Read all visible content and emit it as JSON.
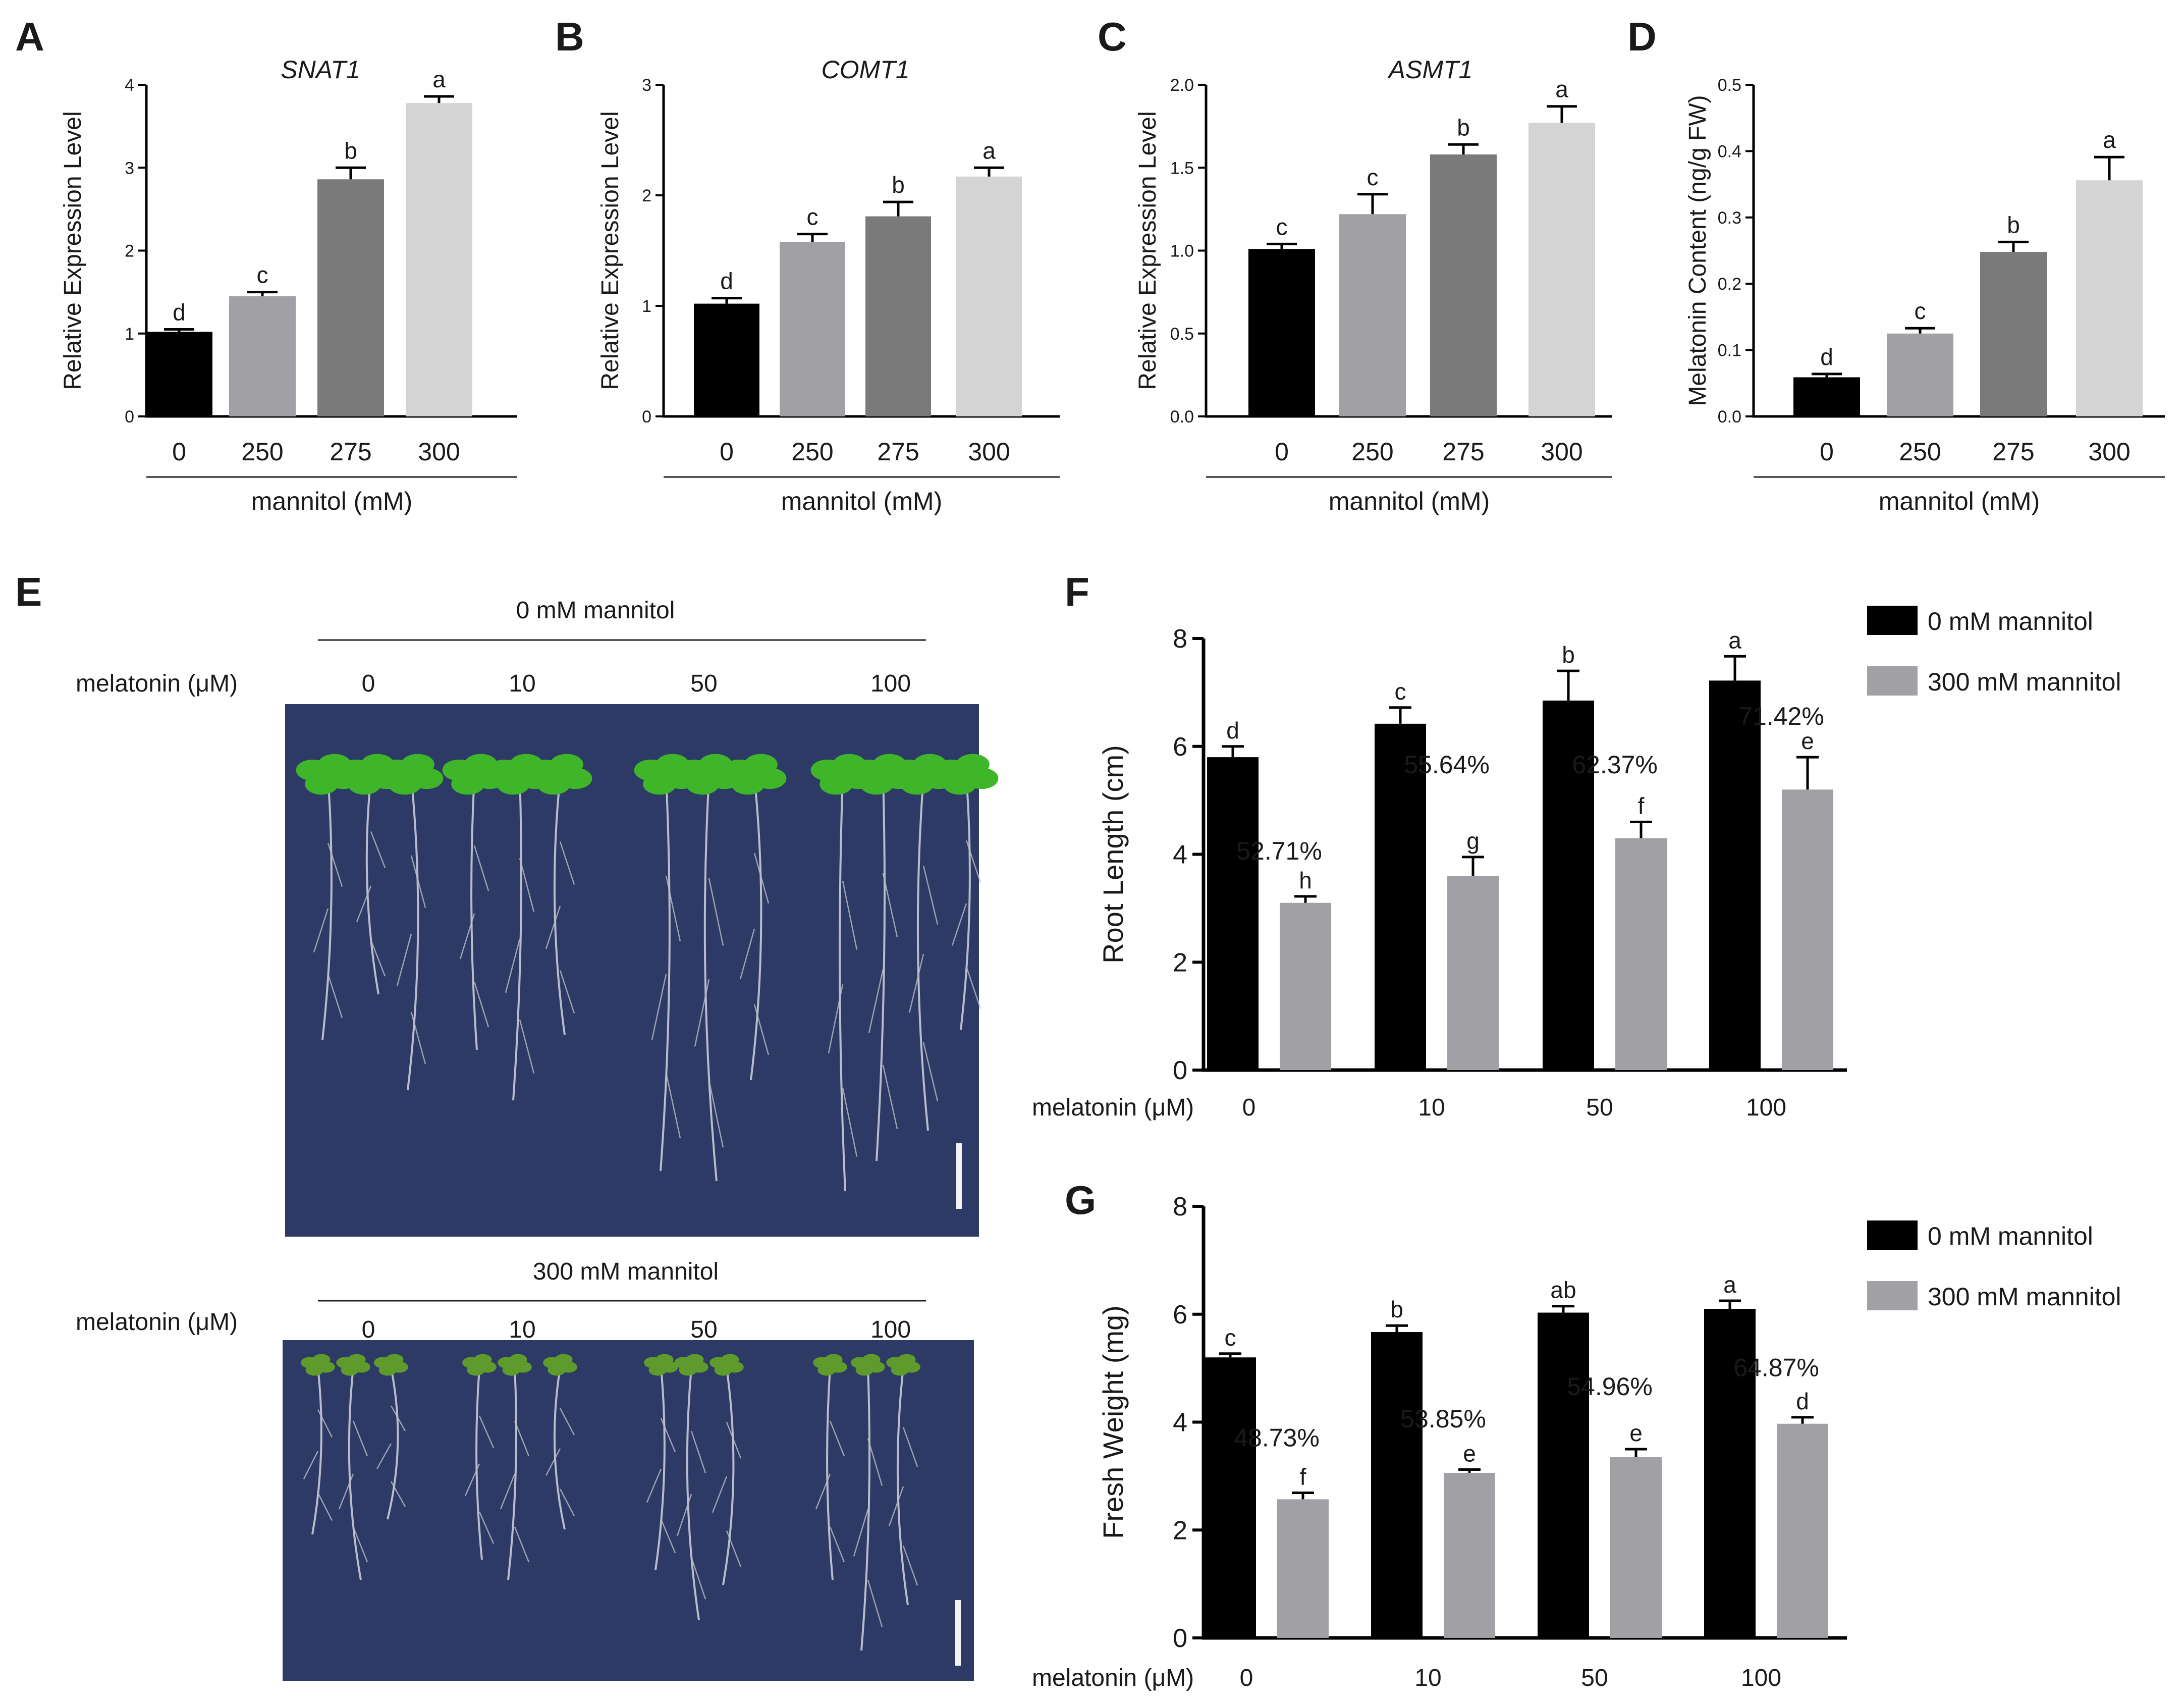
{
  "colors": {
    "c0": "#000000",
    "c250": "#a1a1a5",
    "c275": "#7a7a7a",
    "c300": "#d4d4d4",
    "mannitol0": "#000000",
    "mannitol300": "#a1a1a5",
    "plate": "#2e3a66"
  },
  "panels": {
    "A": "A",
    "B": "B",
    "C": "C",
    "D": "D",
    "E": "E",
    "F": "F",
    "G": "G"
  },
  "photo": {
    "top_condition": "0 mM mannitol",
    "bottom_condition": "300 mM mannitol",
    "row_label": "melatonin (μM)",
    "columns": [
      "0",
      "10",
      "50",
      "100"
    ]
  },
  "chart_data": [
    {
      "id": "A",
      "type": "bar",
      "title": "SNAT1",
      "ylabel": "Relative Expression Level",
      "xlabel": "mannitol (mM)",
      "categories": [
        "0",
        "250",
        "275",
        "300"
      ],
      "values": [
        1.02,
        1.45,
        2.86,
        3.78
      ],
      "errors": [
        0.03,
        0.05,
        0.14,
        0.08
      ],
      "letters": [
        "d",
        "c",
        "b",
        "a"
      ],
      "ylim": [
        0,
        4
      ],
      "yticks": [
        "0",
        "1",
        "2",
        "3",
        "4"
      ],
      "colors": [
        "#000000",
        "#a1a1a5",
        "#7a7a7a",
        "#d4d4d4"
      ]
    },
    {
      "id": "B",
      "type": "bar",
      "title": "COMT1",
      "ylabel": "Relative Expression Level",
      "xlabel": "mannitol (mM)",
      "categories": [
        "0",
        "250",
        "275",
        "300"
      ],
      "values": [
        1.02,
        1.58,
        1.81,
        2.17
      ],
      "errors": [
        0.05,
        0.07,
        0.13,
        0.08
      ],
      "letters": [
        "d",
        "c",
        "b",
        "a"
      ],
      "ylim": [
        0,
        3
      ],
      "yticks": [
        "0",
        "1",
        "2",
        "3"
      ],
      "colors": [
        "#000000",
        "#a1a1a5",
        "#7a7a7a",
        "#d4d4d4"
      ]
    },
    {
      "id": "C",
      "type": "bar",
      "title": "ASMT1",
      "ylabel": "Relative Expression Level",
      "xlabel": "mannitol (mM)",
      "categories": [
        "0",
        "250",
        "275",
        "300"
      ],
      "values": [
        1.01,
        1.22,
        1.58,
        1.77
      ],
      "errors": [
        0.03,
        0.12,
        0.06,
        0.1
      ],
      "letters": [
        "c",
        "c",
        "b",
        "a"
      ],
      "ylim": [
        0,
        2
      ],
      "yticks": [
        "0.0",
        "0.5",
        "1.0",
        "1.5",
        "2.0"
      ],
      "colors": [
        "#000000",
        "#a1a1a5",
        "#7a7a7a",
        "#d4d4d4"
      ]
    },
    {
      "id": "D",
      "type": "bar",
      "title": "",
      "ylabel": "Melatonin Content (ng/g FW)",
      "xlabel": "mannitol (mM)",
      "categories": [
        "0",
        "250",
        "275",
        "300"
      ],
      "values": [
        0.059,
        0.125,
        0.248,
        0.356
      ],
      "errors": [
        0.005,
        0.008,
        0.015,
        0.035
      ],
      "letters": [
        "d",
        "c",
        "b",
        "a"
      ],
      "ylim": [
        0,
        0.5
      ],
      "yticks": [
        "0.0",
        "0.1",
        "0.2",
        "0.3",
        "0.4",
        "0.5"
      ],
      "colors": [
        "#000000",
        "#a1a1a5",
        "#7a7a7a",
        "#d4d4d4"
      ]
    },
    {
      "id": "F",
      "type": "bar",
      "ylabel": "Root  Length (cm)",
      "xlabel": "melatonin (μM)",
      "categories": [
        "0",
        "10",
        "50",
        "100"
      ],
      "ylim": [
        0,
        8
      ],
      "yticks": [
        "0",
        "2",
        "4",
        "6",
        "8"
      ],
      "series": [
        {
          "name": "0 mM mannitol",
          "values": [
            5.8,
            6.42,
            6.85,
            7.22
          ],
          "errors": [
            0.2,
            0.3,
            0.55,
            0.45
          ],
          "letters": [
            "d",
            "c",
            "b",
            "a"
          ]
        },
        {
          "name": "300 mM mannitol",
          "values": [
            3.1,
            3.6,
            4.3,
            5.2
          ],
          "errors": [
            0.12,
            0.35,
            0.3,
            0.6
          ],
          "letters": [
            "h",
            "g",
            "f",
            "e"
          ]
        }
      ],
      "percentages": [
        "52.71%",
        "55.64%",
        "62.37%",
        "71.42%"
      ],
      "pct_values": [
        3.9,
        5.5,
        5.5,
        6.4
      ]
    },
    {
      "id": "G",
      "type": "bar",
      "ylabel": "Fresh Weight (mg)",
      "xlabel": "melatonin (μM)",
      "categories": [
        "0",
        "10",
        "50",
        "100"
      ],
      "ylim": [
        0,
        8
      ],
      "yticks": [
        "0",
        "2",
        "4",
        "6",
        "8"
      ],
      "series": [
        {
          "name": "0 mM mannitol",
          "values": [
            5.2,
            5.67,
            6.03,
            6.1
          ],
          "errors": [
            0.07,
            0.12,
            0.12,
            0.15
          ],
          "letters": [
            "c",
            "b",
            "ab",
            "a"
          ]
        },
        {
          "name": "300 mM mannitol",
          "values": [
            2.57,
            3.06,
            3.35,
            3.97
          ],
          "errors": [
            0.12,
            0.06,
            0.15,
            0.12
          ],
          "letters": [
            "f",
            "e",
            "e",
            "d"
          ]
        }
      ],
      "percentages": [
        "48.73%",
        "53.85%",
        "54.96%",
        "64.87%"
      ],
      "pct_values": [
        3.55,
        3.9,
        4.5,
        4.85
      ]
    }
  ]
}
